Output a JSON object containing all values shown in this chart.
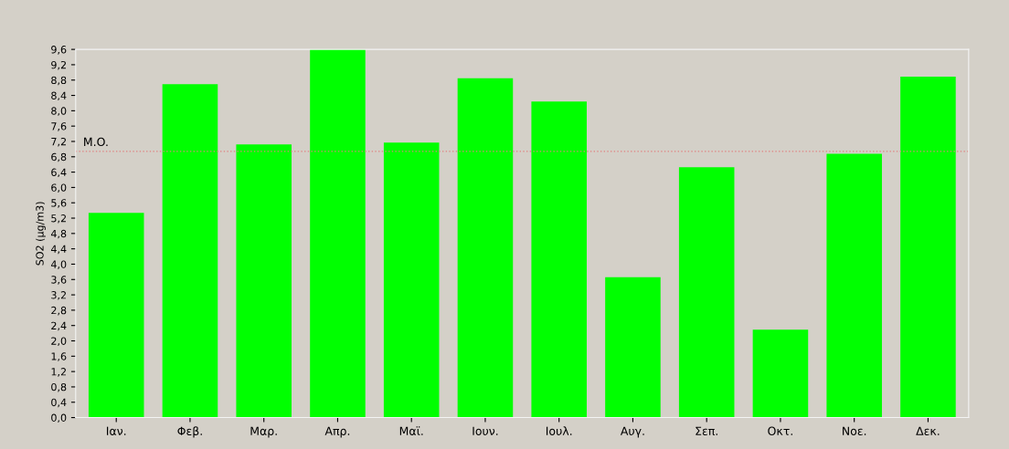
{
  "chart_data": {
    "type": "bar",
    "ylabel": "SO2 (μg/m3)",
    "categories": [
      "Ιαν.",
      "Φεβ.",
      "Μαρ.",
      "Απρ.",
      "Μαϊ.",
      "Ιουν.",
      "Ιουλ.",
      "Αυγ.",
      "Σεπ.",
      "Οκτ.",
      "Νοε.",
      "Δεκ."
    ],
    "values": [
      5.34,
      8.69,
      7.12,
      9.6,
      7.17,
      8.85,
      8.24,
      3.66,
      6.53,
      2.29,
      6.88,
      8.89
    ],
    "color": "#00ff00",
    "ylim": [
      0,
      9.6
    ],
    "yticks": [
      {
        "value": 0,
        "label": "0,0"
      },
      {
        "value": 0.4,
        "label": "0,4"
      },
      {
        "value": 0.8,
        "label": "0,8"
      },
      {
        "value": 1.2,
        "label": "1,2"
      },
      {
        "value": 1.6,
        "label": "1,6"
      },
      {
        "value": 2.0,
        "label": "2,0"
      },
      {
        "value": 2.4,
        "label": "2,4"
      },
      {
        "value": 2.8,
        "label": "2,8"
      },
      {
        "value": 3.2,
        "label": "3,2"
      },
      {
        "value": 3.6,
        "label": "3,6"
      },
      {
        "value": 4.0,
        "label": "4,0"
      },
      {
        "value": 4.4,
        "label": "4,4"
      },
      {
        "value": 4.8,
        "label": "4,8"
      },
      {
        "value": 5.2,
        "label": "5,2"
      },
      {
        "value": 5.6,
        "label": "5,6"
      },
      {
        "value": 6.0,
        "label": "6,0"
      },
      {
        "value": 6.4,
        "label": "6,4"
      },
      {
        "value": 6.8,
        "label": "6,8"
      },
      {
        "value": 7.2,
        "label": "7,2"
      },
      {
        "value": 7.6,
        "label": "7,6"
      },
      {
        "value": 8.0,
        "label": "8,0"
      },
      {
        "value": 8.4,
        "label": "8,4"
      },
      {
        "value": 8.8,
        "label": "8,8"
      },
      {
        "value": 9.2,
        "label": "9,2"
      },
      {
        "value": 9.6,
        "label": "9,6"
      }
    ],
    "ref_lines": [
      {
        "axis": "y",
        "value": 6.94,
        "label": "M.O.",
        "color": "#e08080",
        "line_style": "dotted"
      }
    ],
    "grid": false
  }
}
